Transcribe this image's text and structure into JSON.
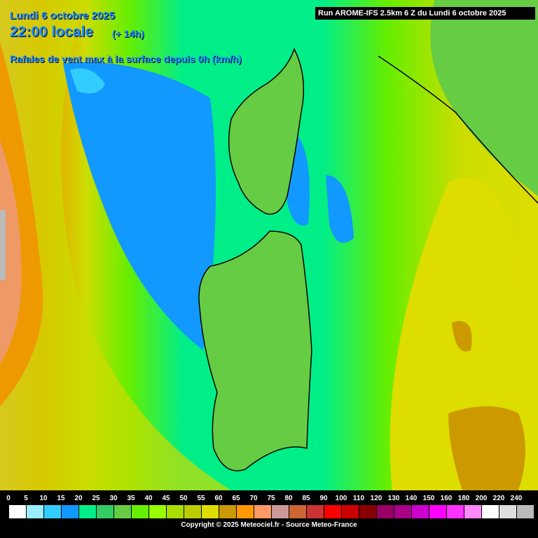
{
  "header": {
    "date": "Lundi 6 octobre 2025",
    "time": "22:00 locale",
    "lead_time": "(+ 14h)",
    "parameter": "Rafales de vent max à la surface depuis 0h (km/h)",
    "run": "Run AROME-IFS 2.5km 6 Z du Lundi 6 octobre 2025"
  },
  "legend": {
    "labels": [
      "0",
      "5",
      "10",
      "15",
      "20",
      "25",
      "30",
      "35",
      "40",
      "45",
      "50",
      "55",
      "60",
      "65",
      "70",
      "75",
      "80",
      "85",
      "90",
      "100",
      "110",
      "120",
      "130",
      "140",
      "150",
      "160",
      "180",
      "200",
      "220",
      "240"
    ],
    "colors": [
      "#ffffff",
      "#99eeff",
      "#33ccff",
      "#1199ff",
      "#00ee88",
      "#33cc66",
      "#66cc44",
      "#66ee00",
      "#99ff00",
      "#aadd00",
      "#bbcc00",
      "#dddd00",
      "#cc9900",
      "#ff9900",
      "#ff9966",
      "#cc9999",
      "#cc6633",
      "#cc3333",
      "#ff0000",
      "#cc0000",
      "#880000",
      "#990066",
      "#aa0088",
      "#cc00cc",
      "#ff00ff",
      "#ff33ff",
      "#ff88ff",
      "#ffffff",
      "#dddddd",
      "#bbbbbb"
    ]
  },
  "footer": {
    "copyright": "Copyright © 2025 Meteociel.fr - Source Meteo-France"
  }
}
